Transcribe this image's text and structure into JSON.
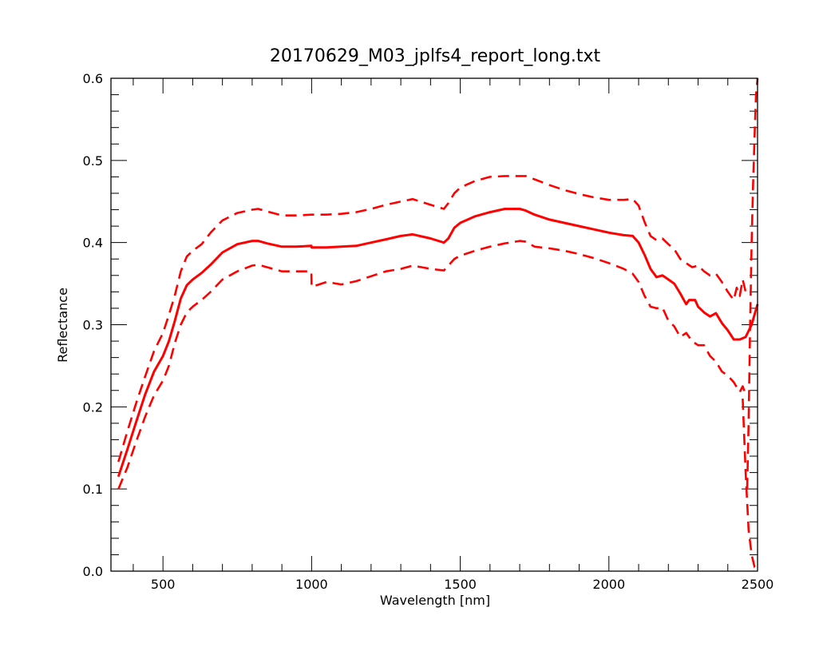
{
  "chart_data": {
    "type": "line",
    "title": "20170629_M03_jplfs4_report_long.txt",
    "xlabel": "Wavelength [nm]",
    "ylabel": "Reflectance",
    "xlim": [
      325,
      2500
    ],
    "ylim": [
      0.0,
      0.6
    ],
    "x_major_ticks": [
      500,
      1000,
      1500,
      2000,
      2500
    ],
    "x_tick_labels": [
      "500",
      "1000",
      "1500",
      "2000",
      "2500"
    ],
    "y_major_ticks": [
      0.0,
      0.1,
      0.2,
      0.3,
      0.4,
      0.5,
      0.6
    ],
    "y_tick_labels": [
      "0.0",
      "0.1",
      "0.2",
      "0.3",
      "0.4",
      "0.5",
      "0.6"
    ],
    "grid": false,
    "line_color": "#ff0000",
    "series": [
      {
        "style": "solid",
        "x": [
          350,
          380,
          410,
          440,
          470,
          500,
          520,
          540,
          560,
          580,
          600,
          630,
          660,
          700,
          750,
          800,
          820,
          850,
          900,
          950,
          999,
          1000,
          1050,
          1100,
          1150,
          1200,
          1250,
          1300,
          1340,
          1400,
          1445,
          1460,
          1480,
          1500,
          1550,
          1600,
          1650,
          1700,
          1720,
          1750,
          1800,
          1850,
          1900,
          1950,
          2000,
          2050,
          2080,
          2100,
          2120,
          2140,
          2160,
          2180,
          2200,
          2220,
          2240,
          2260,
          2270,
          2290,
          2300,
          2320,
          2340,
          2360,
          2380,
          2400,
          2420,
          2440,
          2460,
          2480,
          2500
        ],
        "y": [
          0.115,
          0.148,
          0.182,
          0.215,
          0.243,
          0.262,
          0.28,
          0.305,
          0.332,
          0.348,
          0.355,
          0.363,
          0.373,
          0.388,
          0.398,
          0.402,
          0.402,
          0.399,
          0.395,
          0.395,
          0.396,
          0.394,
          0.394,
          0.395,
          0.396,
          0.4,
          0.404,
          0.408,
          0.41,
          0.405,
          0.4,
          0.405,
          0.418,
          0.424,
          0.432,
          0.437,
          0.441,
          0.441,
          0.439,
          0.434,
          0.428,
          0.424,
          0.42,
          0.416,
          0.412,
          0.409,
          0.408,
          0.4,
          0.385,
          0.368,
          0.358,
          0.36,
          0.355,
          0.35,
          0.338,
          0.325,
          0.33,
          0.33,
          0.322,
          0.315,
          0.31,
          0.314,
          0.302,
          0.293,
          0.282,
          0.282,
          0.285,
          0.3,
          0.325
        ]
      },
      {
        "style": "dashed",
        "x": [
          350,
          380,
          410,
          440,
          470,
          500,
          520,
          540,
          560,
          580,
          600,
          630,
          660,
          700,
          750,
          800,
          820,
          850,
          900,
          950,
          1000,
          1050,
          1100,
          1150,
          1200,
          1250,
          1300,
          1340,
          1400,
          1445,
          1460,
          1480,
          1500,
          1550,
          1600,
          1650,
          1700,
          1720,
          1750,
          1800,
          1850,
          1900,
          1950,
          2000,
          2050,
          2080,
          2100,
          2120,
          2140,
          2160,
          2180,
          2200,
          2220,
          2240,
          2260,
          2280,
          2300,
          2320,
          2340,
          2360,
          2380,
          2400,
          2420,
          2430,
          2440,
          2450,
          2460
        ],
        "y": [
          0.133,
          0.17,
          0.205,
          0.237,
          0.268,
          0.29,
          0.312,
          0.336,
          0.365,
          0.383,
          0.39,
          0.398,
          0.412,
          0.427,
          0.436,
          0.44,
          0.441,
          0.438,
          0.433,
          0.433,
          0.434,
          0.434,
          0.435,
          0.437,
          0.441,
          0.446,
          0.45,
          0.453,
          0.446,
          0.441,
          0.448,
          0.46,
          0.467,
          0.475,
          0.48,
          0.481,
          0.481,
          0.481,
          0.477,
          0.47,
          0.464,
          0.459,
          0.455,
          0.452,
          0.452,
          0.453,
          0.445,
          0.425,
          0.408,
          0.403,
          0.405,
          0.398,
          0.392,
          0.38,
          0.375,
          0.37,
          0.372,
          0.365,
          0.36,
          0.362,
          0.352,
          0.34,
          0.33,
          0.345,
          0.335,
          0.355,
          0.34
        ]
      },
      {
        "style": "dashed",
        "x": [
          350,
          380,
          410,
          440,
          470,
          500,
          520,
          540,
          560,
          580,
          600,
          630,
          660,
          700,
          750,
          800,
          820,
          850,
          900,
          950,
          999,
          1000,
          1050,
          1100,
          1150,
          1200,
          1250,
          1300,
          1340,
          1400,
          1445,
          1460,
          1480,
          1500,
          1550,
          1600,
          1650,
          1700,
          1720,
          1750,
          1800,
          1850,
          1900,
          1950,
          2000,
          2050,
          2080,
          2100,
          2120,
          2140,
          2160,
          2180,
          2200,
          2220,
          2240,
          2260,
          2280,
          2300,
          2320,
          2340,
          2360,
          2380,
          2400,
          2420,
          2440,
          2450,
          2460
        ],
        "y": [
          0.1,
          0.126,
          0.158,
          0.188,
          0.214,
          0.232,
          0.25,
          0.278,
          0.3,
          0.315,
          0.322,
          0.33,
          0.34,
          0.355,
          0.365,
          0.372,
          0.373,
          0.37,
          0.365,
          0.365,
          0.365,
          0.346,
          0.352,
          0.349,
          0.353,
          0.359,
          0.365,
          0.368,
          0.372,
          0.368,
          0.366,
          0.372,
          0.38,
          0.384,
          0.39,
          0.395,
          0.399,
          0.402,
          0.401,
          0.395,
          0.393,
          0.39,
          0.386,
          0.381,
          0.375,
          0.368,
          0.362,
          0.352,
          0.335,
          0.322,
          0.32,
          0.321,
          0.305,
          0.298,
          0.285,
          0.29,
          0.28,
          0.275,
          0.275,
          0.262,
          0.255,
          0.243,
          0.238,
          0.23,
          0.218,
          0.225,
          0.215
        ]
      },
      {
        "style": "dashed",
        "x": [
          2465,
          2470,
          2475,
          2480,
          2485,
          2490,
          2495,
          2500
        ],
        "y": [
          0.1,
          0.18,
          0.3,
          0.4,
          0.47,
          0.53,
          0.58,
          0.6
        ]
      },
      {
        "style": "dashed",
        "x": [
          2450,
          2460,
          2470,
          2480,
          2490,
          2500
        ],
        "y": [
          0.21,
          0.12,
          0.05,
          0.02,
          0.005,
          0.0
        ]
      }
    ]
  }
}
